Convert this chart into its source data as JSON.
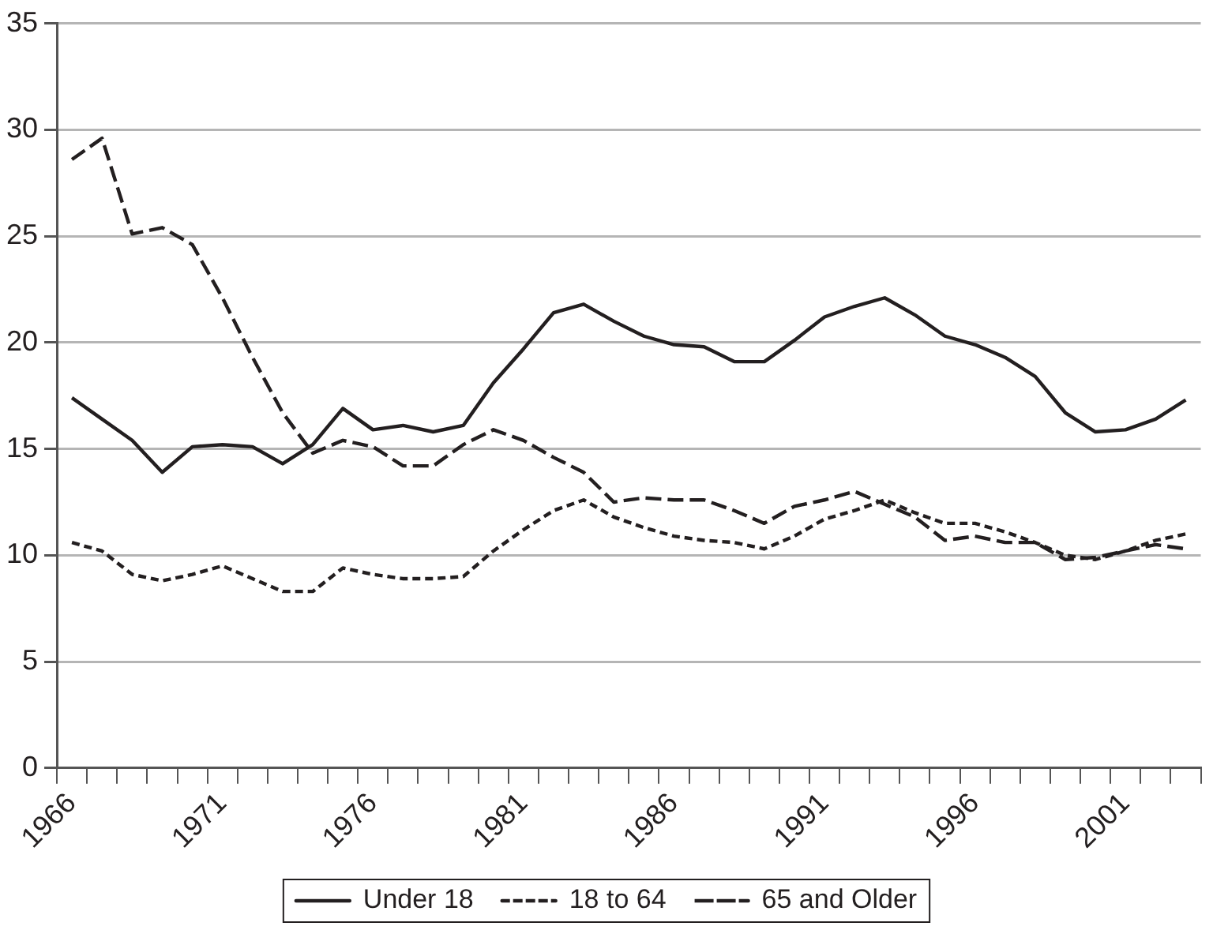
{
  "chart_data": {
    "type": "line",
    "categories": [
      "1966",
      null,
      null,
      null,
      null,
      "1971",
      null,
      null,
      null,
      null,
      "1976",
      null,
      null,
      null,
      null,
      "1981",
      null,
      null,
      null,
      null,
      "1986",
      null,
      null,
      null,
      null,
      "1991",
      null,
      null,
      null,
      null,
      "1996",
      null,
      null,
      null,
      null,
      "2001",
      null,
      null
    ],
    "series": [
      {
        "name": "Under 18",
        "color": "#231f20",
        "line_style": "solid",
        "values": [
          17.4,
          16.4,
          15.4,
          13.9,
          15.1,
          15.2,
          15.1,
          14.3,
          15.2,
          16.9,
          15.9,
          16.1,
          15.8,
          16.1,
          18.1,
          19.7,
          21.4,
          21.8,
          21.0,
          20.3,
          19.9,
          19.8,
          19.1,
          19.1,
          20.1,
          21.2,
          21.7,
          22.1,
          21.3,
          20.3,
          19.9,
          19.3,
          18.4,
          16.7,
          15.8,
          15.9,
          16.4,
          17.3
        ]
      },
      {
        "name": "18 to 64",
        "color": "#231f20",
        "line_style": "dotted",
        "values": [
          10.6,
          10.2,
          9.1,
          8.8,
          9.1,
          9.5,
          8.9,
          8.3,
          8.3,
          9.4,
          9.1,
          8.9,
          8.9,
          9.0,
          10.2,
          11.2,
          12.1,
          12.6,
          11.8,
          11.3,
          10.9,
          10.7,
          10.6,
          10.3,
          10.9,
          11.7,
          12.1,
          12.6,
          12.0,
          11.5,
          11.5,
          11.1,
          10.6,
          10.0,
          9.8,
          10.2,
          10.7,
          11.0
        ]
      },
      {
        "name": "65 and Older",
        "color": "#231f20",
        "line_style": "dashed",
        "values": [
          28.6,
          29.6,
          25.1,
          25.4,
          24.6,
          22.1,
          19.3,
          16.7,
          14.8,
          15.4,
          15.1,
          14.2,
          14.2,
          15.2,
          15.9,
          15.4,
          14.6,
          13.9,
          12.5,
          12.7,
          12.6,
          12.6,
          12.1,
          11.5,
          12.3,
          12.6,
          13.0,
          12.4,
          11.8,
          10.7,
          10.9,
          10.6,
          10.6,
          9.8,
          9.9,
          10.2,
          10.5,
          10.3
        ]
      }
    ],
    "ylim": [
      0,
      35
    ],
    "yticks": [
      0,
      5,
      10,
      15,
      20,
      25,
      30,
      35
    ],
    "grid": "y",
    "legend": "bottom",
    "marker": "none"
  }
}
